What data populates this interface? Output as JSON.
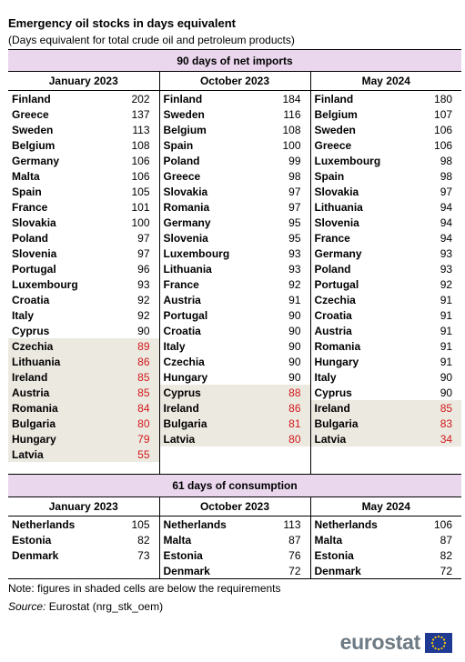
{
  "header": {
    "title": "Emergency oil stocks in days equivalent",
    "subtitle": "(Days equivalent for total crude oil and petroleum products)"
  },
  "section1": {
    "title": "90 days of net imports",
    "columns": [
      "January 2023",
      "October 2023",
      "May 2024"
    ],
    "rows": [
      [
        {
          "country": "Finland",
          "value": "202",
          "shaded": false
        },
        {
          "country": "Finland",
          "value": "184",
          "shaded": false
        },
        {
          "country": "Finland",
          "value": "180",
          "shaded": false
        }
      ],
      [
        {
          "country": "Greece",
          "value": "137",
          "shaded": false
        },
        {
          "country": "Sweden",
          "value": "116",
          "shaded": false
        },
        {
          "country": "Belgium",
          "value": "107",
          "shaded": false
        }
      ],
      [
        {
          "country": "Sweden",
          "value": "113",
          "shaded": false
        },
        {
          "country": "Belgium",
          "value": "108",
          "shaded": false
        },
        {
          "country": "Sweden",
          "value": "106",
          "shaded": false
        }
      ],
      [
        {
          "country": "Belgium",
          "value": "108",
          "shaded": false
        },
        {
          "country": "Spain",
          "value": "100",
          "shaded": false
        },
        {
          "country": "Greece",
          "value": "106",
          "shaded": false
        }
      ],
      [
        {
          "country": "Germany",
          "value": "106",
          "shaded": false
        },
        {
          "country": "Poland",
          "value": "99",
          "shaded": false
        },
        {
          "country": "Luxembourg",
          "value": "98",
          "shaded": false
        }
      ],
      [
        {
          "country": "Malta",
          "value": "106",
          "shaded": false
        },
        {
          "country": "Greece",
          "value": "98",
          "shaded": false
        },
        {
          "country": "Spain",
          "value": "98",
          "shaded": false
        }
      ],
      [
        {
          "country": "Spain",
          "value": "105",
          "shaded": false
        },
        {
          "country": "Slovakia",
          "value": "97",
          "shaded": false
        },
        {
          "country": "Slovakia",
          "value": "97",
          "shaded": false
        }
      ],
      [
        {
          "country": "France",
          "value": "101",
          "shaded": false
        },
        {
          "country": "Romania",
          "value": "97",
          "shaded": false
        },
        {
          "country": "Lithuania",
          "value": "94",
          "shaded": false
        }
      ],
      [
        {
          "country": "Slovakia",
          "value": "100",
          "shaded": false
        },
        {
          "country": "Germany",
          "value": "95",
          "shaded": false
        },
        {
          "country": "Slovenia",
          "value": "94",
          "shaded": false
        }
      ],
      [
        {
          "country": "Poland",
          "value": "97",
          "shaded": false
        },
        {
          "country": "Slovenia",
          "value": "95",
          "shaded": false
        },
        {
          "country": "France",
          "value": "94",
          "shaded": false
        }
      ],
      [
        {
          "country": "Slovenia",
          "value": "97",
          "shaded": false
        },
        {
          "country": "Luxembourg",
          "value": "93",
          "shaded": false
        },
        {
          "country": "Germany",
          "value": "93",
          "shaded": false
        }
      ],
      [
        {
          "country": "Portugal",
          "value": "96",
          "shaded": false
        },
        {
          "country": "Lithuania",
          "value": "93",
          "shaded": false
        },
        {
          "country": "Poland",
          "value": "93",
          "shaded": false
        }
      ],
      [
        {
          "country": "Luxembourg",
          "value": "93",
          "shaded": false
        },
        {
          "country": "France",
          "value": "92",
          "shaded": false
        },
        {
          "country": "Portugal",
          "value": "92",
          "shaded": false
        }
      ],
      [
        {
          "country": "Croatia",
          "value": "92",
          "shaded": false
        },
        {
          "country": "Austria",
          "value": "91",
          "shaded": false
        },
        {
          "country": "Czechia",
          "value": "91",
          "shaded": false
        }
      ],
      [
        {
          "country": "Italy",
          "value": "92",
          "shaded": false
        },
        {
          "country": "Portugal",
          "value": "90",
          "shaded": false
        },
        {
          "country": "Croatia",
          "value": "91",
          "shaded": false
        }
      ],
      [
        {
          "country": "Cyprus",
          "value": "90",
          "shaded": false
        },
        {
          "country": "Croatia",
          "value": "90",
          "shaded": false
        },
        {
          "country": "Austria",
          "value": "91",
          "shaded": false
        }
      ],
      [
        {
          "country": "Czechia",
          "value": "89",
          "shaded": true
        },
        {
          "country": "Italy",
          "value": "90",
          "shaded": false
        },
        {
          "country": "Romania",
          "value": "91",
          "shaded": false
        }
      ],
      [
        {
          "country": "Lithuania",
          "value": "86",
          "shaded": true
        },
        {
          "country": "Czechia",
          "value": "90",
          "shaded": false
        },
        {
          "country": "Hungary",
          "value": "91",
          "shaded": false
        }
      ],
      [
        {
          "country": "Ireland",
          "value": "85",
          "shaded": true
        },
        {
          "country": "Hungary",
          "value": "90",
          "shaded": false
        },
        {
          "country": "Italy",
          "value": "90",
          "shaded": false
        }
      ],
      [
        {
          "country": "Austria",
          "value": "85",
          "shaded": true
        },
        {
          "country": "Cyprus",
          "value": "88",
          "shaded": true
        },
        {
          "country": "Cyprus",
          "value": "90",
          "shaded": false
        }
      ],
      [
        {
          "country": "Romania",
          "value": "84",
          "shaded": true
        },
        {
          "country": "Ireland",
          "value": "86",
          "shaded": true
        },
        {
          "country": "Ireland",
          "value": "85",
          "shaded": true
        }
      ],
      [
        {
          "country": "Bulgaria",
          "value": "80",
          "shaded": true
        },
        {
          "country": "Bulgaria",
          "value": "81",
          "shaded": true
        },
        {
          "country": "Bulgaria",
          "value": "83",
          "shaded": true
        }
      ],
      [
        {
          "country": "Hungary",
          "value": "79",
          "shaded": true
        },
        {
          "country": "Latvia",
          "value": "80",
          "shaded": true
        },
        {
          "country": "Latvia",
          "value": "34",
          "shaded": true
        }
      ],
      [
        {
          "country": "Latvia",
          "value": "55",
          "shaded": true
        },
        null,
        null
      ]
    ]
  },
  "section2": {
    "title": "61 days of consumption",
    "columns": [
      "January 2023",
      "October 2023",
      "May 2024"
    ],
    "rows": [
      [
        {
          "country": "Netherlands",
          "value": "105",
          "shaded": false
        },
        {
          "country": "Netherlands",
          "value": "113",
          "shaded": false
        },
        {
          "country": "Netherlands",
          "value": "106",
          "shaded": false
        }
      ],
      [
        {
          "country": "Estonia",
          "value": "82",
          "shaded": false
        },
        {
          "country": "Malta",
          "value": "87",
          "shaded": false
        },
        {
          "country": "Malta",
          "value": "87",
          "shaded": false
        }
      ],
      [
        {
          "country": "Denmark",
          "value": "73",
          "shaded": false
        },
        {
          "country": "Estonia",
          "value": "76",
          "shaded": false
        },
        {
          "country": "Estonia",
          "value": "82",
          "shaded": false
        }
      ],
      [
        null,
        {
          "country": "Denmark",
          "value": "72",
          "shaded": false
        },
        {
          "country": "Denmark",
          "value": "72",
          "shaded": false
        }
      ]
    ]
  },
  "footer": {
    "note": "Note: figures in shaded cells are below the requirements",
    "source_label": "Source:",
    "source_text": "Eurostat  (nrg_stk_oem)"
  },
  "logo": {
    "text": "eurostat",
    "flag_color": "#1f3a93",
    "star_color": "#ffcc00"
  },
  "colors": {
    "header_band": "#ead7ee",
    "shaded_cell": "#ece9e1",
    "below_requirement_value": "#d11919"
  }
}
